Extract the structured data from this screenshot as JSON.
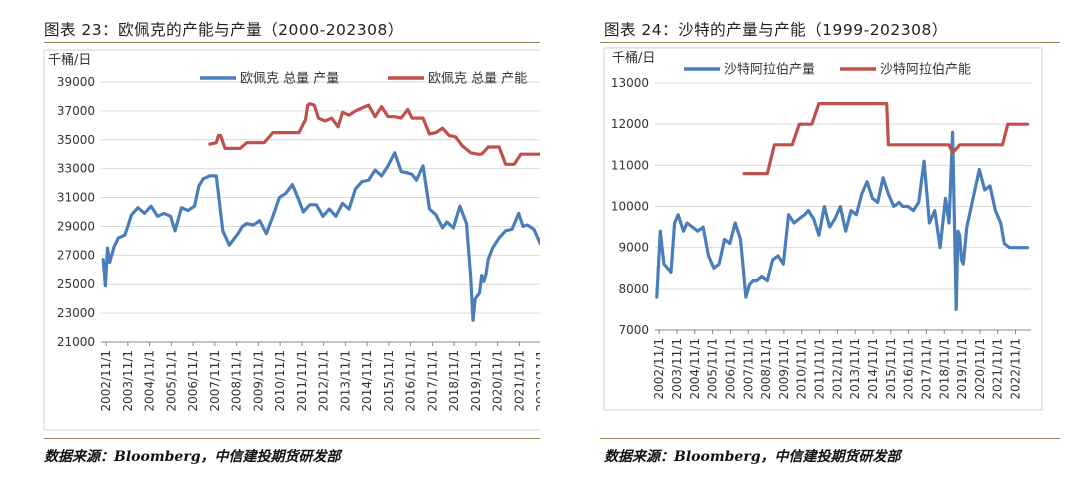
{
  "left": {
    "figure_title": "图表 23：欧佩克的产能与产量（2000-202308）",
    "source": "数据来源：Bloomberg，中信建投期货研发部"
  },
  "right": {
    "figure_title": "图表 24：沙特的产量与产能（1999-202308）",
    "source": "数据来源：Bloomberg，中信建投期货研发部"
  },
  "colors": {
    "production": "#4a7ebb",
    "capacity": "#c0504d",
    "rule": "#9a8a5a"
  },
  "chart_data": [
    {
      "type": "line",
      "unit_label": "千桶/日",
      "ylim": [
        21000,
        39000
      ],
      "yticks": [
        21000,
        23000,
        25000,
        27000,
        29000,
        31000,
        33000,
        35000,
        37000,
        39000
      ],
      "xlim": [
        2002.6,
        2023.7
      ],
      "xticks": [
        "2002/11/1",
        "2003/11/1",
        "2004/11/1",
        "2005/11/1",
        "2006/11/1",
        "2007/11/1",
        "2008/11/1",
        "2009/11/1",
        "2010/11/1",
        "2011/11/1",
        "2012/11/1",
        "2013/11/1",
        "2014/11/1",
        "2015/11/1",
        "2016/11/1",
        "2017/11/1",
        "2018/11/1",
        "2019/11/1",
        "2020/11/1",
        "2021/11/1",
        "2022/11/1"
      ],
      "grid": "horizontal",
      "legend": "top",
      "series": [
        {
          "name": "欧佩克 总量 产量",
          "color": "#4a7ebb",
          "x": [
            2002.7,
            2002.8,
            2002.9,
            2003.0,
            2003.2,
            2003.4,
            2003.7,
            2004.0,
            2004.3,
            2004.6,
            2004.9,
            2005.2,
            2005.5,
            2005.8,
            2006.0,
            2006.3,
            2006.6,
            2006.9,
            2007.1,
            2007.3,
            2007.6,
            2007.9,
            2008.2,
            2008.5,
            2008.7,
            2008.9,
            2009.1,
            2009.3,
            2009.6,
            2009.9,
            2010.2,
            2010.5,
            2010.8,
            2011.1,
            2011.4,
            2011.7,
            2011.9,
            2012.2,
            2012.5,
            2012.8,
            2013.1,
            2013.4,
            2013.7,
            2014.0,
            2014.3,
            2014.6,
            2014.9,
            2015.2,
            2015.5,
            2015.8,
            2016.1,
            2016.4,
            2016.7,
            2016.9,
            2017.1,
            2017.4,
            2017.7,
            2018.0,
            2018.3,
            2018.5,
            2018.8,
            2019.1,
            2019.4,
            2019.6,
            2019.7,
            2019.8,
            2020.0,
            2020.1,
            2020.2,
            2020.3,
            2020.4,
            2020.6,
            2020.9,
            2021.2,
            2021.5,
            2021.8,
            2022.0,
            2022.2,
            2022.5,
            2022.8,
            2023.1,
            2023.3,
            2023.5
          ],
          "y": [
            26700,
            24900,
            27500,
            26500,
            27600,
            28200,
            28400,
            29800,
            30300,
            29900,
            30400,
            29700,
            29900,
            29700,
            28700,
            30300,
            30100,
            30400,
            31800,
            32300,
            32500,
            32500,
            28700,
            27700,
            28100,
            28500,
            29000,
            29200,
            29100,
            29400,
            28500,
            29700,
            31000,
            31300,
            31900,
            30800,
            30000,
            30500,
            30500,
            29700,
            30200,
            29700,
            30600,
            30200,
            31600,
            32100,
            32200,
            32900,
            32500,
            33200,
            34100,
            32800,
            32700,
            32600,
            32200,
            33200,
            30200,
            29800,
            28900,
            29300,
            28900,
            30400,
            29200,
            25400,
            22500,
            24000,
            24400,
            25600,
            25200,
            25700,
            26700,
            27500,
            28200,
            28700,
            28800,
            29900,
            29000,
            29100,
            28800,
            27800,
            27600,
            27700,
            27700
          ]
        },
        {
          "name": "欧佩克 总量 产能",
          "color": "#c0504d",
          "x": [
            2007.6,
            2007.9,
            2008.0,
            2008.1,
            2008.3,
            2008.5,
            2008.7,
            2009.0,
            2009.3,
            2009.6,
            2009.8,
            2010.1,
            2010.5,
            2010.8,
            2011.1,
            2011.4,
            2011.7,
            2012.0,
            2012.1,
            2012.2,
            2012.4,
            2012.6,
            2012.9,
            2013.2,
            2013.5,
            2013.7,
            2014.0,
            2014.3,
            2014.6,
            2014.9,
            2015.2,
            2015.5,
            2015.8,
            2016.1,
            2016.4,
            2016.7,
            2016.9,
            2017.1,
            2017.4,
            2017.7,
            2018.0,
            2018.3,
            2018.6,
            2018.9,
            2019.2,
            2019.6,
            2019.9,
            2020.1,
            2020.4,
            2020.6,
            2020.9,
            2021.2,
            2021.6,
            2021.9,
            2022.2,
            2022.5,
            2022.8,
            2023.1,
            2023.5
          ],
          "y": [
            34700,
            34800,
            35300,
            35300,
            34400,
            34400,
            34400,
            34400,
            34800,
            34800,
            34800,
            34800,
            35500,
            35500,
            35500,
            35500,
            35500,
            36400,
            37400,
            37500,
            37400,
            36500,
            36300,
            36500,
            35900,
            36900,
            36700,
            37000,
            37200,
            37400,
            36600,
            37300,
            36600,
            36600,
            36500,
            37100,
            36500,
            36500,
            36500,
            35400,
            35500,
            35800,
            35300,
            35200,
            34600,
            34100,
            34000,
            34000,
            34500,
            34500,
            34500,
            33300,
            33300,
            34000,
            34000,
            34000,
            34000,
            34000,
            34000
          ]
        }
      ]
    },
    {
      "type": "line",
      "unit_label": "千桶/日",
      "ylim": [
        7000,
        13000
      ],
      "yticks": [
        7000,
        8000,
        9000,
        10000,
        11000,
        12000,
        13000
      ],
      "xlim": [
        2002.6,
        2023.7
      ],
      "xticks": [
        "2002/11/1",
        "2003/11/1",
        "2004/11/1",
        "2005/11/1",
        "2006/11/1",
        "2007/11/1",
        "2008/11/1",
        "2009/11/1",
        "2010/11/1",
        "2011/11/1",
        "2012/11/1",
        "2013/11/1",
        "2014/11/1",
        "2015/11/1",
        "2016/11/1",
        "2017/11/1",
        "2018/11/1",
        "2019/11/1",
        "2020/11/1",
        "2021/11/1",
        "2022/11/1"
      ],
      "grid": "horizontal",
      "legend": "top",
      "series": [
        {
          "name": "沙特阿拉伯产量",
          "color": "#4a7ebb",
          "x": [
            2002.7,
            2002.9,
            2003.1,
            2003.3,
            2003.5,
            2003.7,
            2003.9,
            2004.2,
            2004.4,
            2004.7,
            2005.0,
            2005.3,
            2005.6,
            2005.9,
            2006.2,
            2006.5,
            2006.8,
            2007.1,
            2007.4,
            2007.7,
            2007.9,
            2008.1,
            2008.3,
            2008.6,
            2008.9,
            2009.2,
            2009.5,
            2009.8,
            2010.1,
            2010.4,
            2010.7,
            2011.0,
            2011.2,
            2011.5,
            2011.8,
            2012.1,
            2012.4,
            2012.7,
            2013.0,
            2013.3,
            2013.6,
            2013.9,
            2014.2,
            2014.5,
            2014.8,
            2015.1,
            2015.4,
            2015.7,
            2016.0,
            2016.3,
            2016.5,
            2016.8,
            2017.1,
            2017.4,
            2017.7,
            2018.0,
            2018.3,
            2018.6,
            2018.9,
            2019.1,
            2019.3,
            2019.5,
            2019.6,
            2019.7,
            2019.8,
            2019.9,
            2020.1,
            2020.3,
            2020.5,
            2020.8,
            2021.1,
            2021.4,
            2021.7,
            2022.0,
            2022.2,
            2022.5,
            2022.7,
            2022.9,
            2023.1,
            2023.3,
            2023.5
          ],
          "y": [
            7800,
            9400,
            8600,
            8500,
            8400,
            9600,
            9800,
            9400,
            9600,
            9500,
            9400,
            9500,
            8800,
            8500,
            8600,
            9200,
            9100,
            9600,
            9200,
            7800,
            8100,
            8200,
            8200,
            8300,
            8200,
            8700,
            8800,
            8600,
            9800,
            9600,
            9700,
            9800,
            9900,
            9700,
            9300,
            10000,
            9500,
            9700,
            10000,
            9400,
            9900,
            9800,
            10300,
            10600,
            10200,
            10100,
            10700,
            10300,
            10000,
            10100,
            10000,
            10000,
            9900,
            10100,
            11100,
            9600,
            9900,
            9000,
            10200,
            9600,
            11800,
            7500,
            9400,
            9300,
            8700,
            8600,
            9500,
            9900,
            10300,
            10900,
            10400,
            10500,
            9900,
            9600,
            9100,
            9000,
            9000,
            9000,
            9000,
            9000,
            9000
          ]
        },
        {
          "name": "沙特阿拉伯产能",
          "color": "#c0504d",
          "x": [
            2007.6,
            2008.0,
            2008.4,
            2008.9,
            2009.3,
            2009.7,
            2009.9,
            2010.3,
            2010.7,
            2011.0,
            2011.4,
            2011.8,
            2012.0,
            2012.4,
            2012.8,
            2013.2,
            2013.6,
            2014.0,
            2014.4,
            2014.8,
            2015.2,
            2015.6,
            2015.7,
            2016.1,
            2016.5,
            2016.9,
            2017.3,
            2017.7,
            2018.1,
            2018.5,
            2018.9,
            2019.1,
            2019.3,
            2019.7,
            2020.1,
            2020.5,
            2020.9,
            2021.3,
            2021.7,
            2022.1,
            2022.4,
            2022.6,
            2023.0,
            2023.5
          ],
          "y": [
            10800,
            10800,
            10800,
            10800,
            11500,
            11500,
            11500,
            11500,
            12000,
            12000,
            12000,
            12500,
            12500,
            12500,
            12500,
            12500,
            12500,
            12500,
            12500,
            12500,
            12500,
            12500,
            11500,
            11500,
            11500,
            11500,
            11500,
            11500,
            11500,
            11500,
            11500,
            11500,
            11300,
            11500,
            11500,
            11500,
            11500,
            11500,
            11500,
            11500,
            12000,
            12000,
            12000,
            12000
          ]
        }
      ]
    }
  ]
}
